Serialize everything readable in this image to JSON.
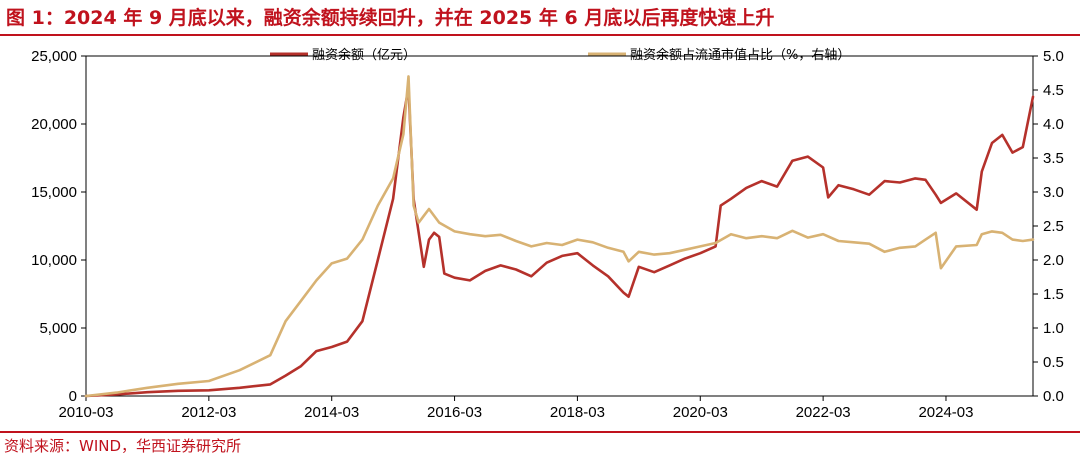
{
  "figure": {
    "title": "图 1：2024 年 9 月底以来，融资余额持续回升，并在 2025 年 6 月底以后再度快速上升",
    "source": "资料来源：WIND，华西证券研究所"
  },
  "chart_data": {
    "type": "line",
    "title": "图 1：2024 年 9 月底以来，融资余额持续回升，并在 2025 年 6 月底以后再度快速上升",
    "xlabel": "",
    "ylabel": "",
    "x_ticks": [
      "2010-03",
      "2012-03",
      "2014-03",
      "2016-03",
      "2018-03",
      "2020-03",
      "2022-03",
      "2024-03"
    ],
    "xlim": [
      "2010-03",
      "2025-08"
    ],
    "ylim": [
      0,
      25000
    ],
    "y2lim": [
      0,
      5
    ],
    "y_ticks": [
      "0",
      "5,000",
      "10,000",
      "15,000",
      "20,000",
      "25,000"
    ],
    "y2_ticks": [
      "0.0",
      "0.5",
      "1.0",
      "1.5",
      "2.0",
      "2.5",
      "3.0",
      "3.5",
      "4.0",
      "4.5",
      "5.0"
    ],
    "legend_position": "top",
    "grid": false,
    "series": [
      {
        "name": "融资余额（亿元）",
        "axis": "left",
        "color": "#b5312b",
        "points": [
          [
            "2010-03",
            0
          ],
          [
            "2010-09",
            120
          ],
          [
            "2011-03",
            280
          ],
          [
            "2011-09",
            380
          ],
          [
            "2012-03",
            420
          ],
          [
            "2012-09",
            600
          ],
          [
            "2013-03",
            850
          ],
          [
            "2013-06",
            1500
          ],
          [
            "2013-09",
            2200
          ],
          [
            "2013-12",
            3300
          ],
          [
            "2014-03",
            3600
          ],
          [
            "2014-06",
            4000
          ],
          [
            "2014-09",
            5500
          ],
          [
            "2014-12",
            10000
          ],
          [
            "2015-03",
            14500
          ],
          [
            "2015-05",
            20500
          ],
          [
            "2015-06",
            22700
          ],
          [
            "2015-07",
            14500
          ],
          [
            "2015-08",
            12000
          ],
          [
            "2015-09",
            9500
          ],
          [
            "2015-10",
            11500
          ],
          [
            "2015-11",
            12000
          ],
          [
            "2015-12",
            11700
          ],
          [
            "2016-01",
            9000
          ],
          [
            "2016-03",
            8700
          ],
          [
            "2016-06",
            8500
          ],
          [
            "2016-09",
            9200
          ],
          [
            "2016-12",
            9600
          ],
          [
            "2017-03",
            9300
          ],
          [
            "2017-06",
            8800
          ],
          [
            "2017-09",
            9800
          ],
          [
            "2017-12",
            10300
          ],
          [
            "2018-03",
            10500
          ],
          [
            "2018-06",
            9600
          ],
          [
            "2018-09",
            8800
          ],
          [
            "2018-12",
            7600
          ],
          [
            "2019-01",
            7300
          ],
          [
            "2019-03",
            9500
          ],
          [
            "2019-06",
            9100
          ],
          [
            "2019-09",
            9600
          ],
          [
            "2019-12",
            10100
          ],
          [
            "2020-03",
            10500
          ],
          [
            "2020-06",
            11000
          ],
          [
            "2020-07",
            14000
          ],
          [
            "2020-09",
            14500
          ],
          [
            "2020-12",
            15300
          ],
          [
            "2021-03",
            15800
          ],
          [
            "2021-06",
            15400
          ],
          [
            "2021-09",
            17300
          ],
          [
            "2021-12",
            17600
          ],
          [
            "2022-03",
            16800
          ],
          [
            "2022-04",
            14600
          ],
          [
            "2022-06",
            15500
          ],
          [
            "2022-09",
            15200
          ],
          [
            "2022-12",
            14800
          ],
          [
            "2023-03",
            15800
          ],
          [
            "2023-06",
            15700
          ],
          [
            "2023-09",
            16000
          ],
          [
            "2023-11",
            15900
          ],
          [
            "2024-01",
            14800
          ],
          [
            "2024-02",
            14200
          ],
          [
            "2024-05",
            14900
          ],
          [
            "2024-09",
            13700
          ],
          [
            "2024-10",
            16500
          ],
          [
            "2024-12",
            18600
          ],
          [
            "2025-02",
            19200
          ],
          [
            "2025-04",
            17900
          ],
          [
            "2025-06",
            18300
          ],
          [
            "2025-08",
            22000
          ]
        ]
      },
      {
        "name": "融资余额占流通市值占比（%，右轴）",
        "axis": "right",
        "color": "#d8b273",
        "points": [
          [
            "2010-03",
            0.0
          ],
          [
            "2010-09",
            0.05
          ],
          [
            "2011-03",
            0.12
          ],
          [
            "2011-09",
            0.18
          ],
          [
            "2012-03",
            0.22
          ],
          [
            "2012-09",
            0.38
          ],
          [
            "2013-03",
            0.6
          ],
          [
            "2013-06",
            1.1
          ],
          [
            "2013-09",
            1.4
          ],
          [
            "2013-12",
            1.7
          ],
          [
            "2014-03",
            1.95
          ],
          [
            "2014-06",
            2.02
          ],
          [
            "2014-09",
            2.3
          ],
          [
            "2014-12",
            2.8
          ],
          [
            "2015-03",
            3.2
          ],
          [
            "2015-05",
            3.85
          ],
          [
            "2015-06",
            4.7
          ],
          [
            "2015-07",
            2.8
          ],
          [
            "2015-08",
            2.55
          ],
          [
            "2015-09",
            2.65
          ],
          [
            "2015-10",
            2.75
          ],
          [
            "2015-12",
            2.55
          ],
          [
            "2016-03",
            2.42
          ],
          [
            "2016-06",
            2.38
          ],
          [
            "2016-09",
            2.35
          ],
          [
            "2016-12",
            2.37
          ],
          [
            "2017-03",
            2.28
          ],
          [
            "2017-06",
            2.2
          ],
          [
            "2017-09",
            2.25
          ],
          [
            "2017-12",
            2.22
          ],
          [
            "2018-03",
            2.3
          ],
          [
            "2018-06",
            2.26
          ],
          [
            "2018-09",
            2.18
          ],
          [
            "2018-12",
            2.12
          ],
          [
            "2019-01",
            1.98
          ],
          [
            "2019-03",
            2.12
          ],
          [
            "2019-06",
            2.08
          ],
          [
            "2019-09",
            2.1
          ],
          [
            "2019-12",
            2.15
          ],
          [
            "2020-03",
            2.2
          ],
          [
            "2020-06",
            2.25
          ],
          [
            "2020-09",
            2.38
          ],
          [
            "2020-12",
            2.32
          ],
          [
            "2021-03",
            2.35
          ],
          [
            "2021-06",
            2.32
          ],
          [
            "2021-09",
            2.43
          ],
          [
            "2021-12",
            2.33
          ],
          [
            "2022-03",
            2.38
          ],
          [
            "2022-06",
            2.28
          ],
          [
            "2022-09",
            2.26
          ],
          [
            "2022-12",
            2.24
          ],
          [
            "2023-03",
            2.12
          ],
          [
            "2023-06",
            2.18
          ],
          [
            "2023-09",
            2.2
          ],
          [
            "2023-11",
            2.3
          ],
          [
            "2024-01",
            2.4
          ],
          [
            "2024-02",
            1.88
          ],
          [
            "2024-05",
            2.2
          ],
          [
            "2024-09",
            2.22
          ],
          [
            "2024-10",
            2.38
          ],
          [
            "2024-12",
            2.42
          ],
          [
            "2025-02",
            2.4
          ],
          [
            "2025-04",
            2.3
          ],
          [
            "2025-06",
            2.28
          ],
          [
            "2025-08",
            2.3
          ]
        ]
      }
    ]
  }
}
